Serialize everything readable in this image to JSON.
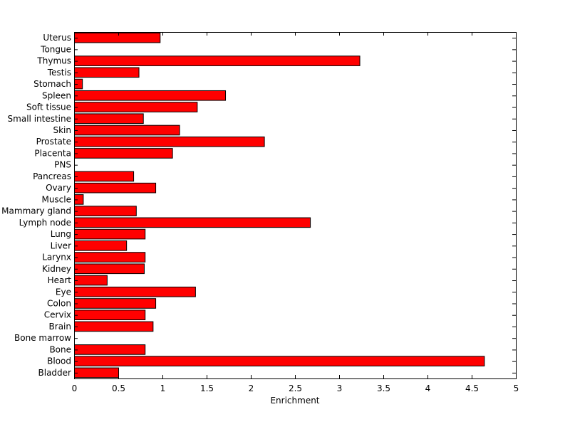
{
  "chart_data": {
    "type": "bar",
    "orientation": "horizontal",
    "categories": [
      "Bladder",
      "Blood",
      "Bone",
      "Bone marrow",
      "Brain",
      "Cervix",
      "Colon",
      "Eye",
      "Heart",
      "Kidney",
      "Larynx",
      "Liver",
      "Lung",
      "Lymph node",
      "Mammary gland",
      "Muscle",
      "Ovary",
      "Pancreas",
      "PNS",
      "Placenta",
      "Prostate",
      "Skin",
      "Small intestine",
      "Soft tissue",
      "Spleen",
      "Stomach",
      "Testis",
      "Thymus",
      "Tongue",
      "Uterus"
    ],
    "values": [
      0.5,
      4.64,
      0.8,
      0,
      0.89,
      0.8,
      0.92,
      1.37,
      0.37,
      0.79,
      0.8,
      0.59,
      0.8,
      2.67,
      0.7,
      0.1,
      0.92,
      0.67,
      0,
      1.11,
      2.15,
      1.19,
      0.78,
      1.39,
      1.71,
      0.09,
      0.73,
      3.23,
      0,
      0.97
    ],
    "xlabel": "Enrichment",
    "ylabel": "",
    "title": "",
    "xlim": [
      0,
      5
    ],
    "xticks": [
      "0",
      "0.5",
      "1",
      "1.5",
      "2",
      "2.5",
      "3",
      "3.5",
      "4",
      "4.5",
      "5"
    ],
    "bar_color": "#ff0000",
    "grid": false,
    "legend": "none"
  }
}
